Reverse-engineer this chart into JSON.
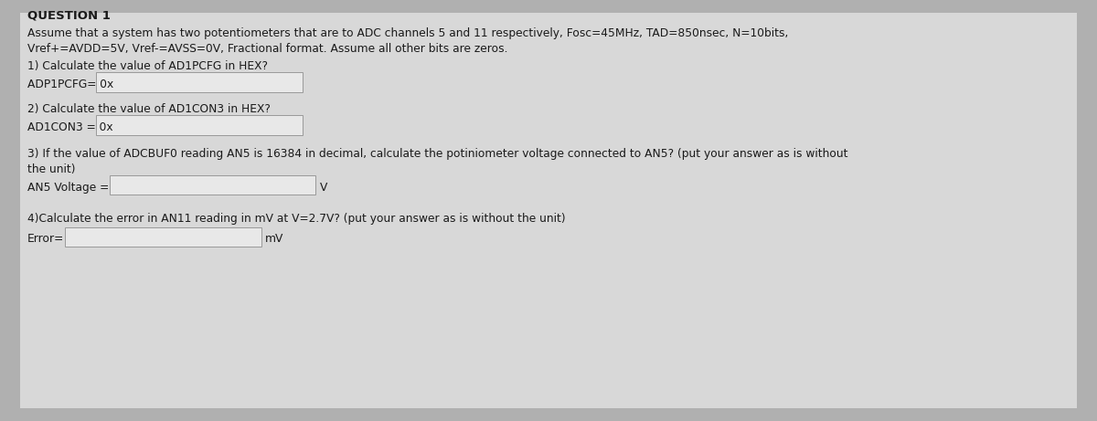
{
  "outer_bg_color": "#b0b0b0",
  "panel_bg_color": "#d8d8d8",
  "title": "QUESTION 1",
  "description_line1": "Assume that a system has two potentiometers that are to ADC channels 5 and 11 respectively, Fosc=45MHz, TAD=850nsec, N=10bits,",
  "description_line2": "Vref+=AVDD=5V, Vref-=AVSS=0V, Fractional format. Assume all other bits are zeros.",
  "q1_text": "1) Calculate the value of AD1PCFG in HEX?",
  "q1_label": "ADP1PCFG= 0x",
  "q2_text": "2) Calculate the value of AD1CON3 in HEX?",
  "q2_label": "AD1CON3 = 0x",
  "q3_text_line1": "3) If the value of ADCBUF0 reading AN5 is 16384 in decimal, calculate the potiniometer voltage connected to AN5? (put your answer as is without",
  "q3_text_line2": "the unit)",
  "q3_label": "AN5 Voltage =",
  "q3_unit": "V",
  "q4_text": "4)Calculate the error in AN11 reading in mV at V=2.7V? (put your answer as is without the unit)",
  "q4_label": "Error=",
  "q4_unit": "mV",
  "text_color": "#1a1a1a",
  "box_fill_color": "#e8e8e8",
  "box_edge_color": "#999999",
  "title_fontsize": 9.5,
  "body_fontsize": 8.8,
  "label_fontsize": 8.8
}
